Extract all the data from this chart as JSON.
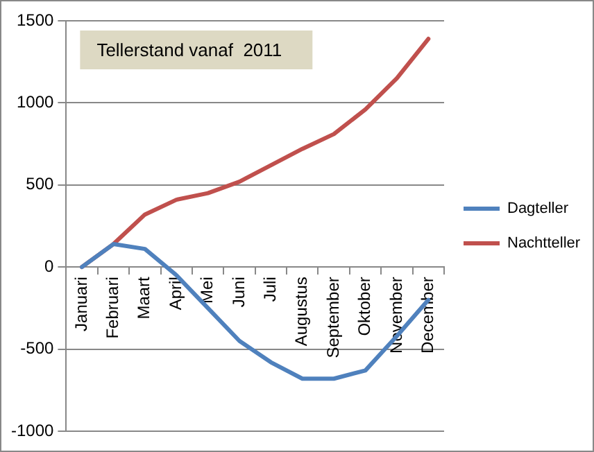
{
  "chart_data": {
    "type": "line",
    "title": "Tellerstand vanaf  2011",
    "categories": [
      "Januari",
      "Februari",
      "Maart",
      "April",
      "Mei",
      "Juni",
      "Juli",
      "Augustus",
      "September",
      "Oktober",
      "November",
      "December"
    ],
    "series": [
      {
        "name": "Dagteller",
        "color": "#4f81bd",
        "values": [
          0,
          140,
          110,
          -50,
          -250,
          -450,
          -580,
          -680,
          -680,
          -630,
          -420,
          -200
        ]
      },
      {
        "name": "Nachtteller",
        "color": "#c0504d",
        "values": [
          0,
          140,
          320,
          410,
          450,
          520,
          620,
          720,
          810,
          960,
          1150,
          1390
        ]
      }
    ],
    "ylim": [
      -1000,
      1500
    ],
    "yticks": [
      -1000,
      -500,
      0,
      500,
      1000,
      1500
    ],
    "grid": "y",
    "legend": "right",
    "marker": "none",
    "line_style": "solid"
  }
}
